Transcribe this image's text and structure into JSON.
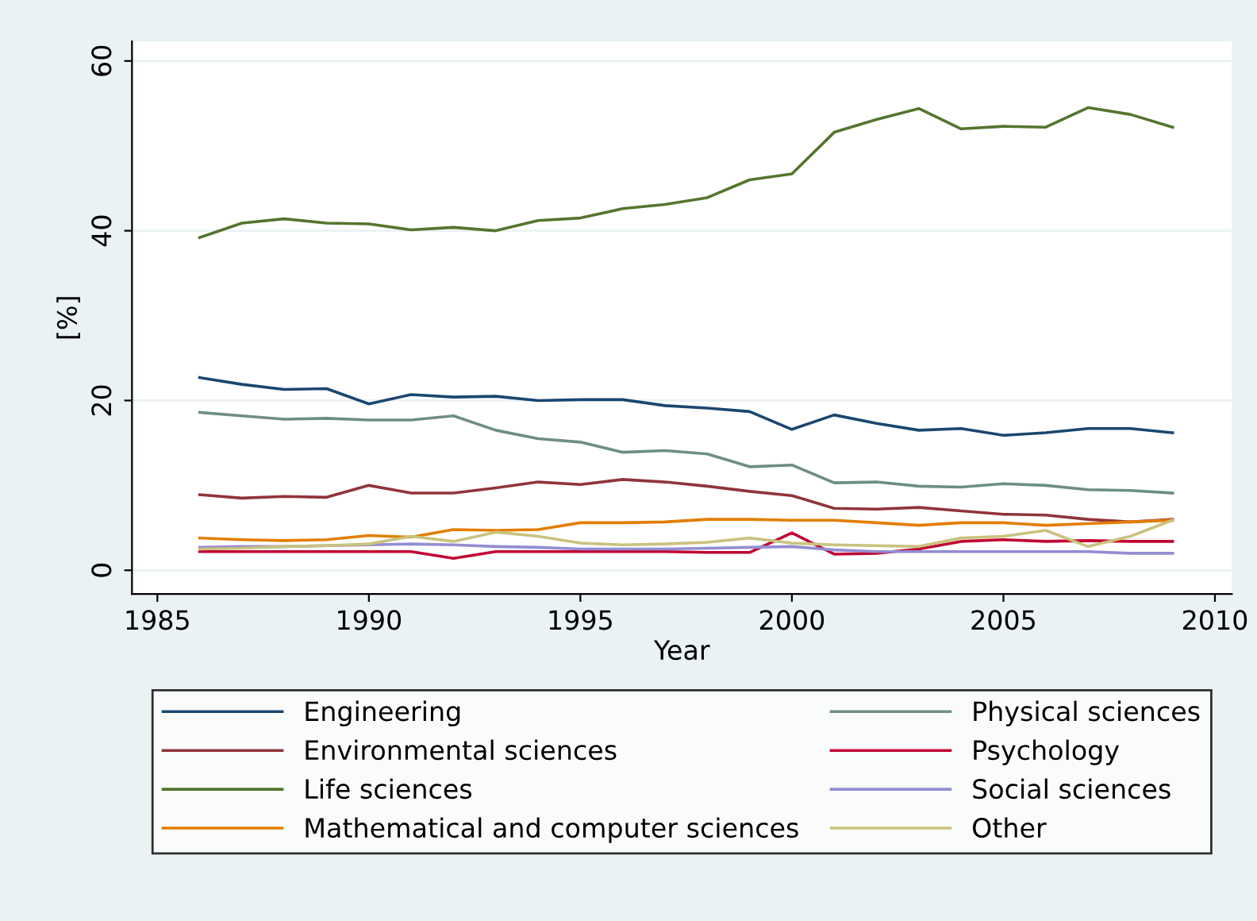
{
  "chart_data": {
    "type": "line",
    "xlabel": "Year",
    "ylabel": "[%]",
    "x": [
      1986,
      1987,
      1988,
      1989,
      1990,
      1991,
      1992,
      1993,
      1994,
      1995,
      1996,
      1997,
      1998,
      1999,
      2000,
      2001,
      2002,
      2003,
      2004,
      2005,
      2006,
      2007,
      2008,
      2009
    ],
    "xlim": [
      1984.4,
      2010.4
    ],
    "xticks": [
      1985,
      1990,
      1995,
      2000,
      2005,
      2010
    ],
    "ylim": [
      -2.8,
      62.3
    ],
    "yticks": [
      0,
      20,
      40,
      60
    ],
    "grid": "y",
    "legend": "bottom",
    "marker": "none",
    "line_style": "solid",
    "series": [
      {
        "name": "Engineering",
        "color": "#1a476f",
        "values": [
          22.7,
          21.9,
          21.3,
          21.4,
          19.6,
          20.7,
          20.4,
          20.5,
          20.0,
          20.1,
          20.1,
          19.4,
          19.1,
          18.7,
          16.6,
          18.3,
          17.3,
          16.5,
          16.7,
          15.9,
          16.2,
          16.7,
          16.7,
          16.2
        ]
      },
      {
        "name": "Environmental sciences",
        "color": "#90353b",
        "values": [
          8.9,
          8.5,
          8.7,
          8.6,
          10.0,
          9.1,
          9.1,
          9.7,
          10.4,
          10.1,
          10.7,
          10.4,
          9.9,
          9.3,
          8.8,
          7.3,
          7.2,
          7.4,
          7.0,
          6.6,
          6.5,
          6.0,
          5.7,
          6.0
        ]
      },
      {
        "name": "Life sciences",
        "color": "#55752f",
        "values": [
          39.2,
          40.9,
          41.4,
          40.9,
          40.8,
          40.1,
          40.4,
          40.0,
          41.2,
          41.5,
          42.6,
          43.1,
          43.9,
          46.0,
          46.7,
          51.6,
          53.1,
          54.4,
          52.0,
          52.3,
          52.2,
          54.5,
          53.7,
          52.2
        ]
      },
      {
        "name": "Mathematical and computer sciences",
        "color": "#e37e00",
        "values": [
          3.8,
          3.6,
          3.5,
          3.6,
          4.1,
          3.9,
          4.8,
          4.7,
          4.8,
          5.6,
          5.6,
          5.7,
          6.0,
          6.0,
          5.9,
          5.9,
          5.6,
          5.3,
          5.6,
          5.6,
          5.3,
          5.5,
          5.7,
          5.9
        ]
      },
      {
        "name": "Physical sciences",
        "color": "#6e8e84",
        "values": [
          18.6,
          18.2,
          17.8,
          17.9,
          17.7,
          17.7,
          18.2,
          16.5,
          15.5,
          15.1,
          13.9,
          14.1,
          13.7,
          12.2,
          12.4,
          10.3,
          10.4,
          9.9,
          9.8,
          10.2,
          10.0,
          9.5,
          9.4,
          9.1
        ]
      },
      {
        "name": "Psychology",
        "color": "#c10534",
        "values": [
          2.2,
          2.2,
          2.2,
          2.2,
          2.2,
          2.2,
          1.4,
          2.2,
          2.2,
          2.2,
          2.2,
          2.2,
          2.1,
          2.1,
          4.4,
          1.9,
          2.0,
          2.5,
          3.4,
          3.6,
          3.4,
          3.5,
          3.4,
          3.4
        ]
      },
      {
        "name": "Social sciences",
        "color": "#938dd2",
        "values": [
          2.7,
          2.8,
          2.8,
          2.9,
          3.0,
          3.1,
          3.0,
          2.8,
          2.7,
          2.5,
          2.5,
          2.5,
          2.6,
          2.7,
          2.8,
          2.4,
          2.2,
          2.2,
          2.2,
          2.2,
          2.2,
          2.2,
          2.0,
          2.0
        ]
      },
      {
        "name": "Other",
        "color": "#cac27e",
        "values": [
          2.5,
          2.6,
          2.8,
          2.9,
          3.1,
          4.0,
          3.4,
          4.5,
          4.0,
          3.2,
          3.0,
          3.1,
          3.3,
          3.8,
          3.2,
          3.0,
          2.9,
          2.8,
          3.8,
          4.0,
          4.7,
          2.8,
          4.0,
          5.9
        ]
      }
    ]
  }
}
